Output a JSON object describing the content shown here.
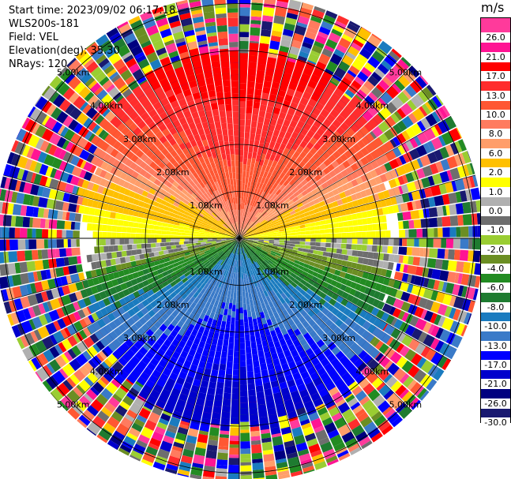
{
  "header": {
    "start_time": "Start time: 2023/09/02 06:17:18",
    "instrument": "WLS200s-181",
    "field": "Field: VEL",
    "elevation": "Elevation(deg): 35.30",
    "nrays": "NRays: 120"
  },
  "colorbar": {
    "unit": "m/s",
    "ticks": [
      "26.0",
      "21.0",
      "17.0",
      "13.0",
      "10.0",
      "8.0",
      "6.0",
      "2.0",
      "1.0",
      "0.0",
      "-1.0",
      "-2.0",
      "-4.0",
      "-6.0",
      "-8.0",
      "-10.0",
      "-13.0",
      "-17.0",
      "-21.0",
      "-26.0",
      "-30.0"
    ],
    "colors": [
      "#ff3a9b",
      "#ff1493",
      "#ff0000",
      "#ff2d2d",
      "#ff5733",
      "#ff7b5f",
      "#ff9e6a",
      "#ffc000",
      "#ffff00",
      "#b0b0b0",
      "#6e6e6e",
      "#9acd32",
      "#6b8e23",
      "#228b22",
      "#1e7b30",
      "#1a7bbf",
      "#3a7ac8",
      "#0000ff",
      "#0000cc",
      "#000080",
      "#191970"
    ]
  },
  "chart_data": {
    "type": "heatmap",
    "subtype": "polar PPI scan",
    "field": "VEL",
    "unit": "m/s",
    "nrays": 120,
    "range_rings_km": [
      1,
      2,
      3,
      4,
      5
    ],
    "ring_labels": [
      "1.00km",
      "2.00km",
      "3.00km",
      "4.00km",
      "5.00km"
    ],
    "max_range_km": 5.2,
    "color_levels": [
      -30,
      -26,
      -21,
      -17,
      -13,
      -10,
      -8,
      -6,
      -4,
      -2,
      -1,
      0,
      1,
      2,
      6,
      8,
      10,
      13,
      17,
      21,
      26
    ],
    "pattern": "north half positive (red/orange), south half negative (blue), near-zero (yellow/grey/green) band along east-west axis, noisy speckle beyond ~3.5 km",
    "grid": true
  }
}
